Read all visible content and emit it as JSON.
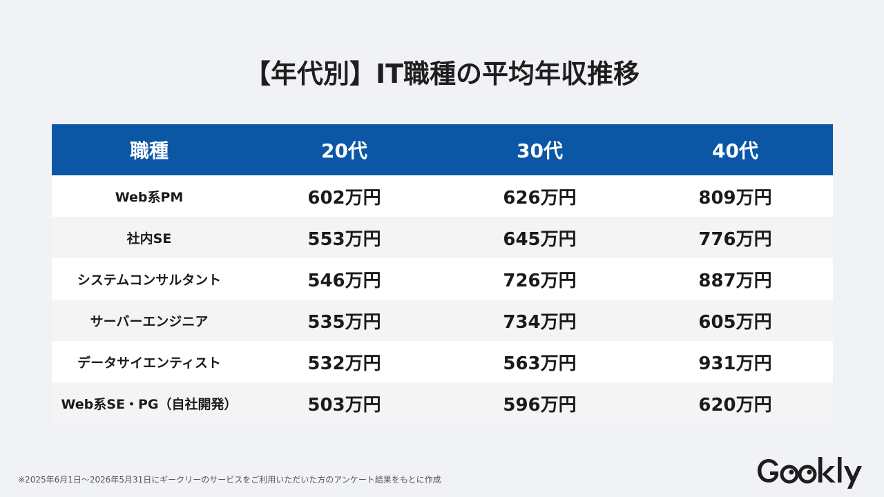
{
  "title": "【年代別】IT職種の平均年収推移",
  "table": {
    "headers": [
      "職種",
      "20代",
      "30代",
      "40代"
    ],
    "rows": [
      [
        "Web系PM",
        "602万円",
        "626万円",
        "809万円"
      ],
      [
        "社内SE",
        "553万円",
        "645万円",
        "776万円"
      ],
      [
        "システムコンサルタント",
        "546万円",
        "726万円",
        "887万円"
      ],
      [
        "サーバーエンジニア",
        "535万円",
        "734万円",
        "605万円"
      ],
      [
        "データサイエンティスト",
        "532万円",
        "563万円",
        "931万円"
      ],
      [
        "Web系SE・PG（自社開発）",
        "503万円",
        "596万円",
        "620万円"
      ]
    ]
  },
  "footnote": "※2025年6月1日〜2026年5月31日にギークリーのサービスをご利用いただいた方のアンケート結果をもとに作成",
  "logo": {
    "text": "Geekly",
    "color": "#1e1e1e"
  }
}
